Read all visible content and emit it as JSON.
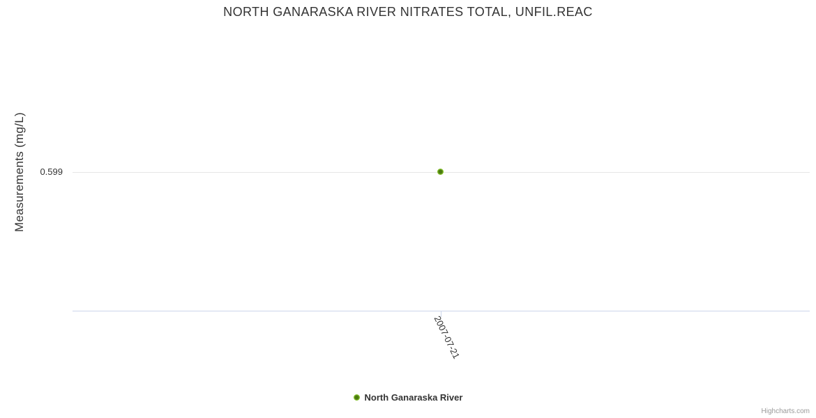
{
  "chart": {
    "title": "NORTH GANARASKA RIVER NITRATES TOTAL, UNFIL.REAC",
    "y_axis": {
      "title": "Measurements (mg/L)",
      "tick_label": "0.599"
    },
    "x_axis": {
      "tick_label": "2007-07-21"
    },
    "legend": {
      "series_label": "North Ganaraska River"
    },
    "credits": "Highcharts.com",
    "colors": {
      "marker_outer": "#83bf29",
      "marker_core": "#4b7a10",
      "grid_line": "#e6e6e6",
      "axis_line": "#ccd6eb",
      "text": "#333333",
      "credits_text": "#999999"
    }
  },
  "chart_data": {
    "type": "scatter",
    "title": "NORTH GANARASKA RIVER NITRATES TOTAL, UNFIL.REAC",
    "xlabel": "",
    "ylabel": "Measurements (mg/L)",
    "x_categories": [
      "2007-07-21"
    ],
    "series": [
      {
        "name": "North Ganaraska River",
        "color": "#83bf29",
        "points": [
          {
            "x": "2007-07-21",
            "y": 0.599
          }
        ]
      }
    ],
    "y_ticks": [
      0.599
    ],
    "grid": "horizontal-only",
    "legend_position": "bottom-center",
    "x_label_rotation_deg": 64
  }
}
